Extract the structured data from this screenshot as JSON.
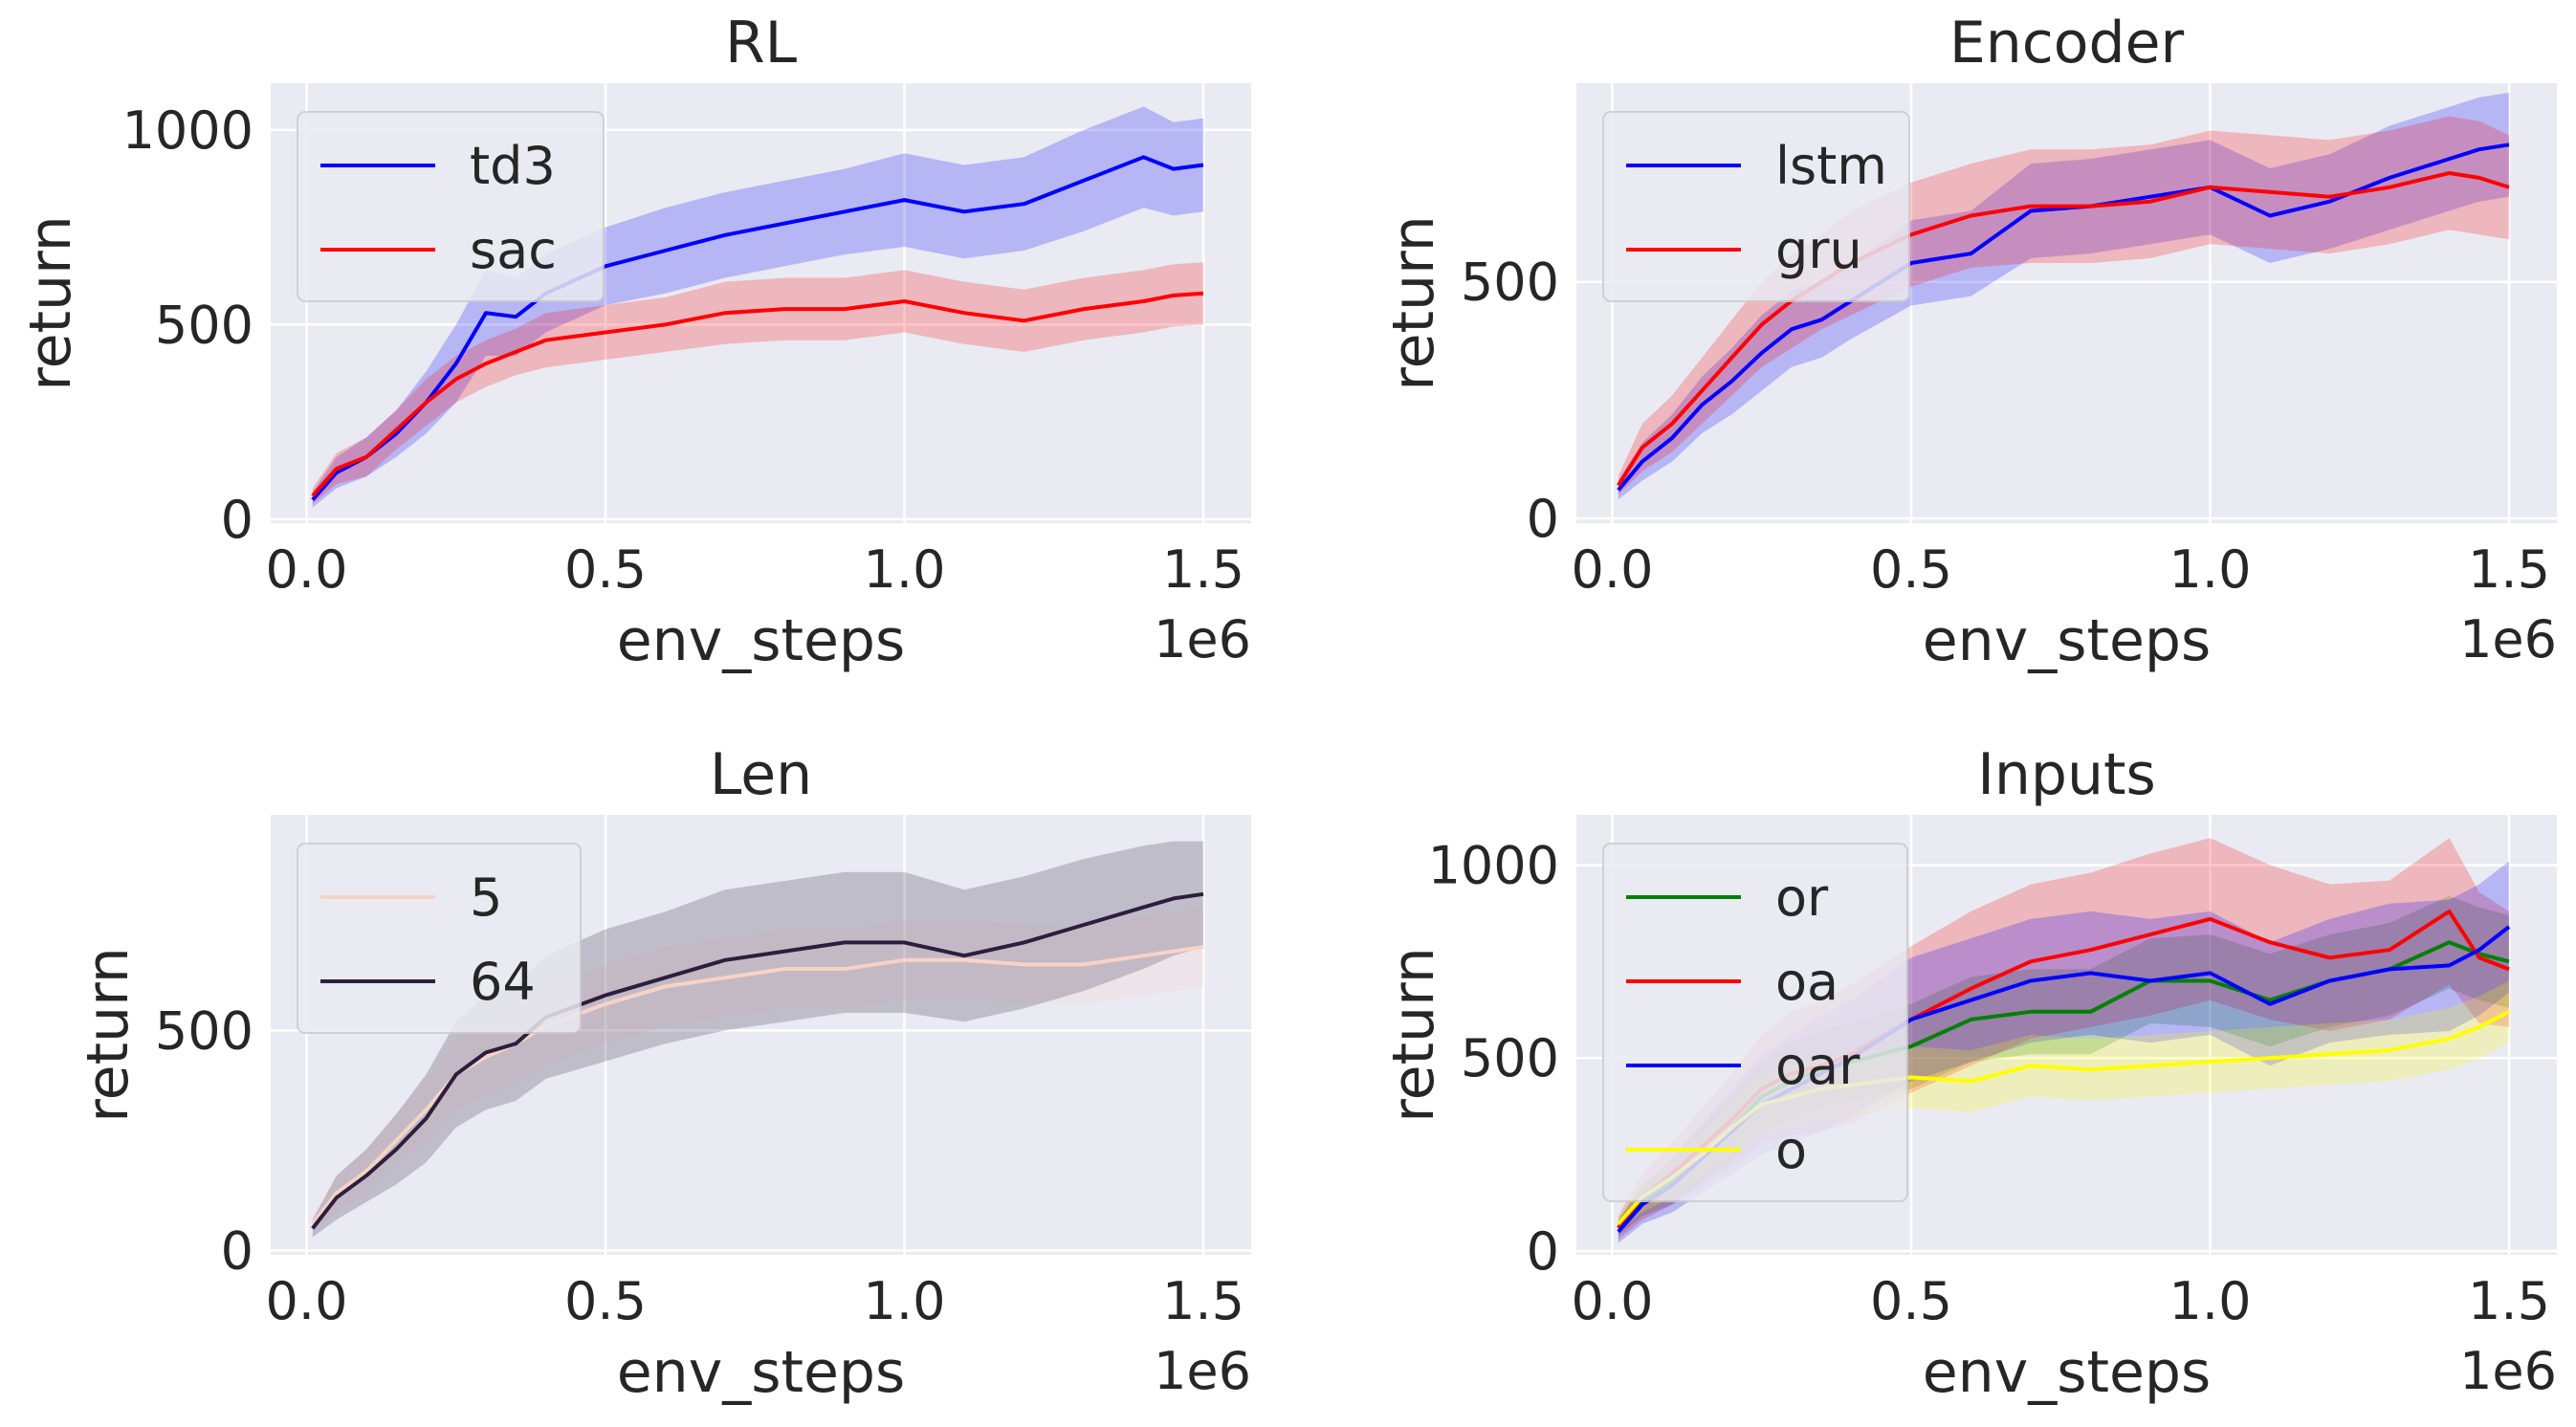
{
  "figure": "2x2 grid of learning curves",
  "chart_data": [
    {
      "type": "line",
      "title": "RL",
      "xlabel": "env_steps",
      "ylabel": "return",
      "x_offset_label": "1e6",
      "xlim": [
        -0.06,
        1.58
      ],
      "ylim": [
        -10,
        1120
      ],
      "xticks": [
        0.0,
        0.5,
        1.0,
        1.5
      ],
      "xtick_labels": [
        "0.0",
        "0.5",
        "1.0",
        "1.5"
      ],
      "yticks": [
        0,
        500,
        1000
      ],
      "ytick_labels": [
        "0",
        "500",
        "1000"
      ],
      "legend": "upper left",
      "x": [
        0.01,
        0.05,
        0.1,
        0.15,
        0.2,
        0.25,
        0.3,
        0.35,
        0.4,
        0.5,
        0.6,
        0.7,
        0.8,
        0.9,
        1.0,
        1.1,
        1.2,
        1.3,
        1.4,
        1.45,
        1.5
      ],
      "series": [
        {
          "name": "td3",
          "color": "#0000ff",
          "values": [
            50,
            120,
            160,
            220,
            300,
            400,
            530,
            520,
            580,
            650,
            690,
            730,
            760,
            790,
            820,
            790,
            810,
            870,
            930,
            900,
            910
          ],
          "band": [
            20,
            40,
            50,
            60,
            80,
            100,
            110,
            100,
            100,
            100,
            110,
            110,
            110,
            110,
            120,
            120,
            120,
            130,
            130,
            120,
            120
          ]
        },
        {
          "name": "sac",
          "color": "#ff0000",
          "values": [
            60,
            130,
            160,
            230,
            300,
            360,
            400,
            430,
            460,
            480,
            500,
            530,
            540,
            540,
            560,
            530,
            510,
            540,
            560,
            575,
            580
          ],
          "band": [
            20,
            40,
            50,
            50,
            60,
            60,
            60,
            60,
            70,
            70,
            70,
            80,
            80,
            80,
            80,
            80,
            80,
            80,
            80,
            80,
            80
          ]
        }
      ]
    },
    {
      "type": "line",
      "title": "Encoder",
      "xlabel": "env_steps",
      "ylabel": "return",
      "x_offset_label": "1e6",
      "xlim": [
        -0.06,
        1.58
      ],
      "ylim": [
        -10,
        920
      ],
      "xticks": [
        0.0,
        0.5,
        1.0,
        1.5
      ],
      "xtick_labels": [
        "0.0",
        "0.5",
        "1.0",
        "1.5"
      ],
      "yticks": [
        0,
        500
      ],
      "ytick_labels": [
        "0",
        "500"
      ],
      "legend": "upper left",
      "x": [
        0.01,
        0.05,
        0.1,
        0.15,
        0.2,
        0.25,
        0.3,
        0.35,
        0.4,
        0.5,
        0.6,
        0.7,
        0.8,
        0.9,
        1.0,
        1.1,
        1.2,
        1.3,
        1.4,
        1.45,
        1.5
      ],
      "series": [
        {
          "name": "lstm",
          "color": "#0000ff",
          "values": [
            60,
            120,
            170,
            240,
            290,
            350,
            400,
            420,
            460,
            540,
            560,
            650,
            660,
            680,
            700,
            640,
            670,
            720,
            760,
            780,
            790
          ],
          "band": [
            20,
            40,
            50,
            60,
            70,
            80,
            80,
            80,
            80,
            90,
            90,
            100,
            100,
            100,
            100,
            100,
            100,
            110,
            110,
            110,
            110
          ]
        },
        {
          "name": "gru",
          "color": "#ff0000",
          "values": [
            70,
            150,
            200,
            270,
            340,
            410,
            460,
            500,
            540,
            600,
            640,
            660,
            660,
            670,
            700,
            690,
            680,
            700,
            730,
            720,
            700
          ],
          "band": [
            20,
            50,
            60,
            70,
            80,
            90,
            100,
            100,
            110,
            110,
            110,
            120,
            120,
            120,
            120,
            120,
            120,
            120,
            120,
            120,
            110
          ]
        }
      ]
    },
    {
      "type": "line",
      "title": "Len",
      "xlabel": "env_steps",
      "ylabel": "return",
      "x_offset_label": "1e6",
      "xlim": [
        -0.06,
        1.58
      ],
      "ylim": [
        -10,
        990
      ],
      "xticks": [
        0.0,
        0.5,
        1.0,
        1.5
      ],
      "xtick_labels": [
        "0.0",
        "0.5",
        "1.0",
        "1.5"
      ],
      "yticks": [
        0,
        500
      ],
      "ytick_labels": [
        "0",
        "500"
      ],
      "legend": "upper left",
      "x": [
        0.01,
        0.05,
        0.1,
        0.15,
        0.2,
        0.25,
        0.3,
        0.35,
        0.4,
        0.5,
        0.6,
        0.7,
        0.8,
        0.9,
        1.0,
        1.1,
        1.2,
        1.3,
        1.4,
        1.45,
        1.5
      ],
      "series": [
        {
          "name": "5",
          "color": "#f7d3c7",
          "values": [
            60,
            130,
            180,
            250,
            320,
            400,
            440,
            470,
            510,
            560,
            600,
            620,
            640,
            640,
            660,
            660,
            650,
            650,
            670,
            680,
            690
          ],
          "band": [
            20,
            40,
            50,
            60,
            70,
            80,
            90,
            90,
            90,
            90,
            90,
            90,
            90,
            90,
            90,
            90,
            90,
            90,
            90,
            90,
            90
          ]
        },
        {
          "name": "64",
          "color": "#2d1e3e",
          "values": [
            50,
            120,
            170,
            230,
            300,
            400,
            450,
            470,
            530,
            580,
            620,
            660,
            680,
            700,
            700,
            670,
            700,
            740,
            780,
            800,
            810
          ],
          "band": [
            20,
            50,
            60,
            80,
            100,
            120,
            130,
            130,
            140,
            150,
            150,
            160,
            160,
            160,
            160,
            150,
            150,
            150,
            140,
            130,
            120
          ]
        }
      ]
    },
    {
      "type": "line",
      "title": "Inputs",
      "xlabel": "env_steps",
      "ylabel": "return",
      "x_offset_label": "1e6",
      "xlim": [
        -0.06,
        1.58
      ],
      "ylim": [
        -10,
        1130
      ],
      "xticks": [
        0.0,
        0.5,
        1.0,
        1.5
      ],
      "xtick_labels": [
        "0.0",
        "0.5",
        "1.0",
        "1.5"
      ],
      "yticks": [
        0,
        500,
        1000
      ],
      "ytick_labels": [
        "0",
        "500",
        "1000"
      ],
      "legend": "upper left",
      "x": [
        0.01,
        0.05,
        0.1,
        0.15,
        0.2,
        0.25,
        0.3,
        0.35,
        0.4,
        0.5,
        0.6,
        0.7,
        0.8,
        0.9,
        1.0,
        1.1,
        1.2,
        1.3,
        1.4,
        1.45,
        1.5
      ],
      "series": [
        {
          "name": "or",
          "color": "#008000",
          "values": [
            60,
            130,
            180,
            250,
            320,
            400,
            440,
            470,
            490,
            530,
            600,
            620,
            620,
            700,
            700,
            650,
            700,
            730,
            800,
            770,
            750
          ],
          "band": [
            20,
            40,
            60,
            70,
            80,
            90,
            100,
            100,
            100,
            110,
            110,
            110,
            110,
            110,
            120,
            120,
            120,
            120,
            120,
            120,
            120
          ]
        },
        {
          "name": "oa",
          "color": "#ff0000",
          "values": [
            60,
            140,
            200,
            270,
            340,
            420,
            460,
            480,
            510,
            600,
            680,
            750,
            780,
            820,
            860,
            800,
            760,
            780,
            880,
            760,
            730
          ],
          "band": [
            30,
            60,
            80,
            100,
            120,
            140,
            160,
            170,
            180,
            190,
            200,
            200,
            200,
            210,
            210,
            200,
            190,
            180,
            190,
            170,
            150
          ]
        },
        {
          "name": "oar",
          "color": "#0000ff",
          "values": [
            50,
            120,
            170,
            240,
            310,
            380,
            420,
            460,
            500,
            600,
            650,
            700,
            720,
            700,
            720,
            640,
            700,
            730,
            740,
            780,
            840
          ],
          "band": [
            30,
            50,
            70,
            90,
            110,
            130,
            140,
            150,
            150,
            160,
            160,
            160,
            160,
            160,
            160,
            160,
            160,
            170,
            170,
            170,
            170
          ]
        },
        {
          "name": "o",
          "color": "#ffff00",
          "values": [
            70,
            140,
            190,
            250,
            320,
            380,
            400,
            420,
            430,
            450,
            440,
            480,
            470,
            480,
            490,
            500,
            510,
            520,
            550,
            580,
            620
          ],
          "band": [
            20,
            40,
            50,
            60,
            70,
            80,
            80,
            80,
            80,
            80,
            80,
            80,
            80,
            80,
            80,
            80,
            80,
            80,
            80,
            80,
            80
          ]
        }
      ]
    }
  ]
}
